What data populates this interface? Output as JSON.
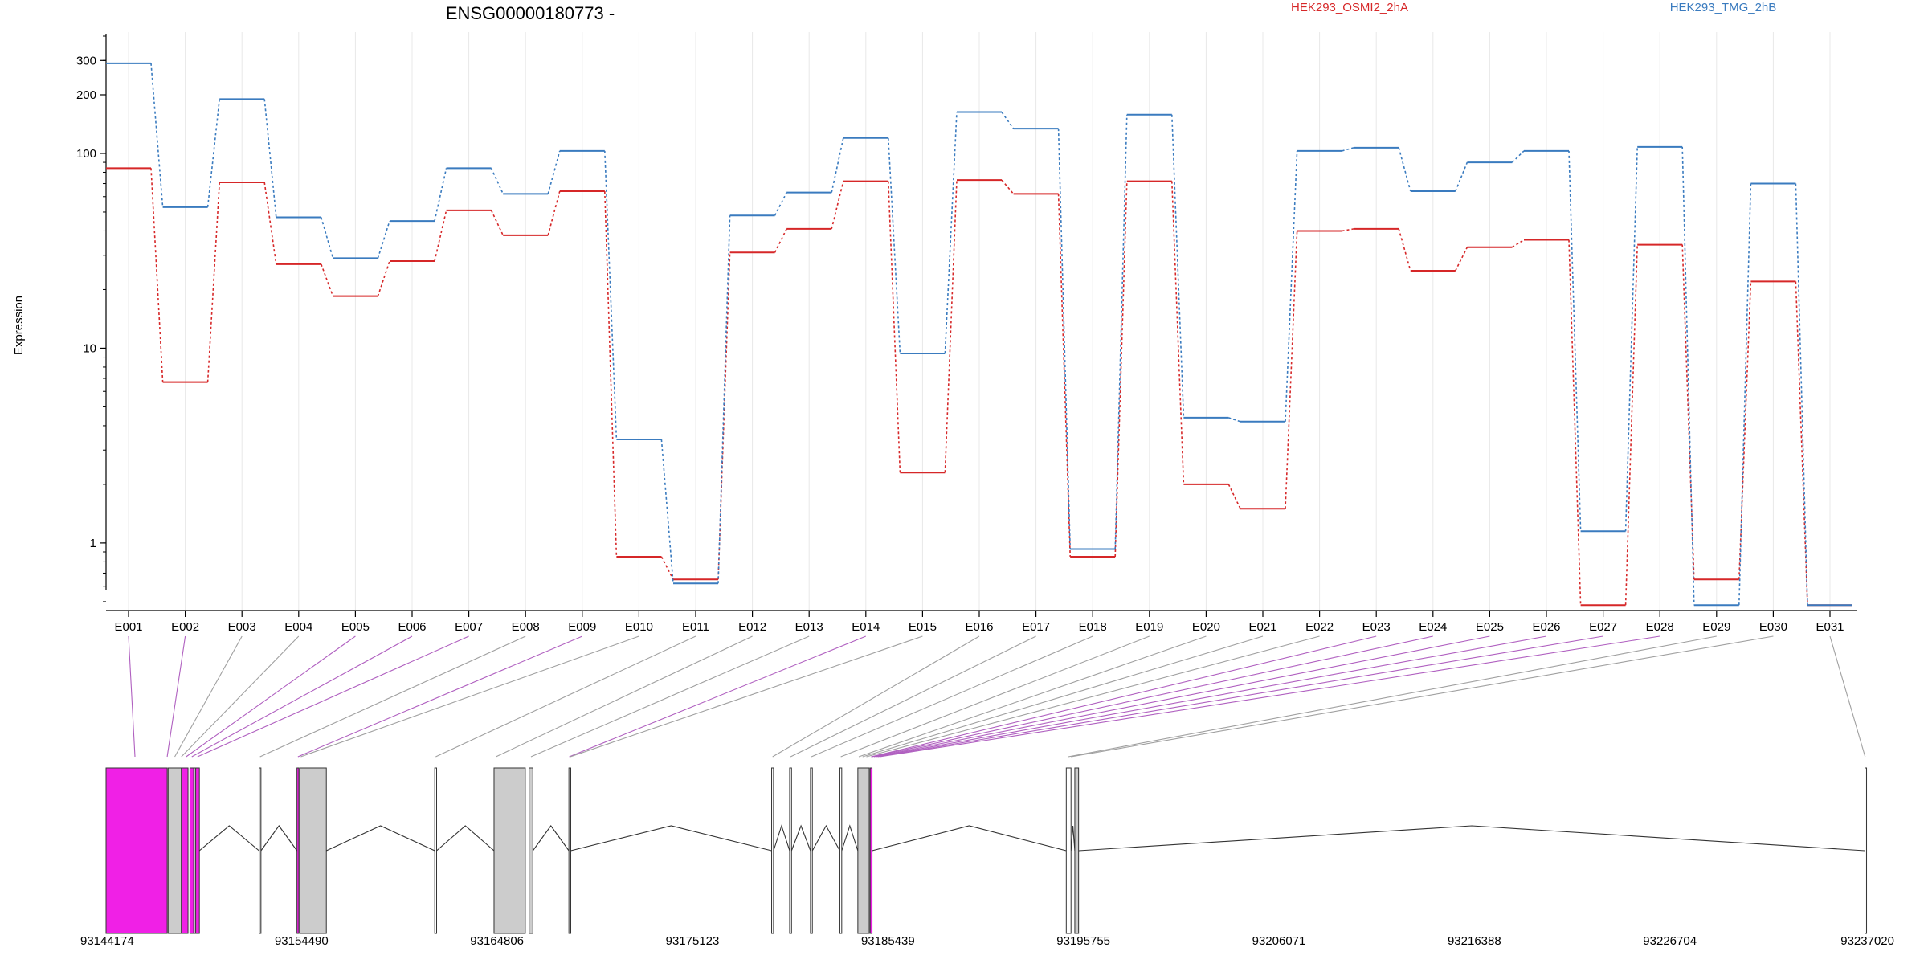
{
  "chart_data": {
    "type": "line",
    "title": "ENSG00000180773 -",
    "ylabel": "Expression",
    "xlabel": "",
    "yscale": "log",
    "ylim": [
      0.45,
      400
    ],
    "yticks": [
      1,
      10,
      100,
      200,
      300
    ],
    "grid": "vertical",
    "legend_position": "top-right",
    "categories": [
      "E001",
      "E002",
      "E003",
      "E004",
      "E005",
      "E006",
      "E007",
      "E008",
      "E009",
      "E010",
      "E011",
      "E012",
      "E013",
      "E014",
      "E015",
      "E016",
      "E017",
      "E018",
      "E019",
      "E020",
      "E021",
      "E022",
      "E023",
      "E024",
      "E025",
      "E026",
      "E027",
      "E028",
      "E029",
      "E030",
      "E031"
    ],
    "series": [
      {
        "name": "HEK293_OSMI2_2hA",
        "color": "#d62728",
        "values": [
          84,
          6.7,
          71,
          27,
          18.5,
          28,
          51,
          38,
          64,
          0.85,
          0.65,
          31,
          41,
          72,
          2.3,
          73,
          62,
          0.85,
          72,
          2.0,
          1.5,
          40,
          41,
          25,
          33,
          36,
          0.48,
          34,
          0.65,
          22,
          0.48
        ]
      },
      {
        "name": "HEK293_TMG_2hB",
        "color": "#3a7bbf",
        "values": [
          290,
          53,
          190,
          47,
          29,
          45,
          84,
          62,
          103,
          3.4,
          0.62,
          48,
          63,
          120,
          9.4,
          163,
          134,
          0.93,
          158,
          4.4,
          4.2,
          103,
          107,
          64,
          90,
          103,
          1.15,
          108,
          0.48,
          70,
          0.48
        ]
      }
    ]
  },
  "gene_model": {
    "coordinates": [
      "93144174",
      "93154490",
      "93164806",
      "93175123",
      "93185439",
      "93195755",
      "93206071",
      "93216388",
      "93226704",
      "93237020"
    ],
    "coord_range": [
      93144174,
      93237020
    ],
    "highlight_color": "#f020e6",
    "exon_color": "#cccccc",
    "exons": [
      {
        "s": 93144174,
        "e": 93147400,
        "fill": "highlight"
      },
      {
        "s": 93147450,
        "e": 93148150,
        "fill": "normal"
      },
      {
        "s": 93148150,
        "e": 93148500,
        "fill": "highlight"
      },
      {
        "s": 93148600,
        "e": 93148800,
        "fill": "highlight"
      },
      {
        "s": 93148900,
        "e": 93149100,
        "fill": "highlight"
      },
      {
        "s": 93148820,
        "e": 93148880,
        "fill": "normal"
      },
      {
        "s": 93152250,
        "e": 93152350,
        "fill": "normal"
      },
      {
        "s": 93154250,
        "e": 93154350,
        "fill": "highlight"
      },
      {
        "s": 93154400,
        "e": 93155800,
        "fill": "normal"
      },
      {
        "s": 93161520,
        "e": 93161620,
        "fill": "white"
      },
      {
        "s": 93164650,
        "e": 93166300,
        "fill": "normal"
      },
      {
        "s": 93166500,
        "e": 93166700,
        "fill": "normal"
      },
      {
        "s": 93168600,
        "e": 93168700,
        "fill": "white"
      },
      {
        "s": 93179300,
        "e": 93179400,
        "fill": "white"
      },
      {
        "s": 93180250,
        "e": 93180350,
        "fill": "white"
      },
      {
        "s": 93181350,
        "e": 93181450,
        "fill": "white"
      },
      {
        "s": 93182900,
        "e": 93183000,
        "fill": "white"
      },
      {
        "s": 93183850,
        "e": 93184450,
        "fill": "normal"
      },
      {
        "s": 93184500,
        "e": 93184600,
        "fill": "highlight"
      },
      {
        "s": 93194850,
        "e": 93195100,
        "fill": "white"
      },
      {
        "s": 93195300,
        "e": 93195500,
        "fill": "normal"
      },
      {
        "s": 93237000,
        "e": 93237020,
        "fill": "white"
      }
    ],
    "introns": [
      [
        93149100,
        93152250
      ],
      [
        93152350,
        93154250
      ],
      [
        93155800,
        93161520
      ],
      [
        93161620,
        93164650
      ],
      [
        93166700,
        93168600
      ],
      [
        93168700,
        93179300
      ],
      [
        93179400,
        93180250
      ],
      [
        93180350,
        93181350
      ],
      [
        93181450,
        93182900
      ],
      [
        93183000,
        93183850
      ],
      [
        93184600,
        93194850
      ],
      [
        93195100,
        93195300
      ],
      [
        93195500,
        93237000
      ]
    ],
    "connectors": [
      {
        "bin": "E001",
        "target": 93145700,
        "fill": "highlight"
      },
      {
        "bin": "E002",
        "target": 93147400,
        "fill": "highlight"
      },
      {
        "bin": "E003",
        "target": 93147800,
        "fill": "normal"
      },
      {
        "bin": "E004",
        "target": 93148150,
        "fill": "normal"
      },
      {
        "bin": "E005",
        "target": 93148400,
        "fill": "highlight"
      },
      {
        "bin": "E006",
        "target": 93148700,
        "fill": "highlight"
      },
      {
        "bin": "E007",
        "target": 93149000,
        "fill": "highlight"
      },
      {
        "bin": "E008",
        "target": 93152300,
        "fill": "normal"
      },
      {
        "bin": "E009",
        "target": 93154300,
        "fill": "highlight"
      },
      {
        "bin": "E010",
        "target": 93154450,
        "fill": "normal"
      },
      {
        "bin": "E011",
        "target": 93161570,
        "fill": "normal"
      },
      {
        "bin": "E012",
        "target": 93164750,
        "fill": "normal"
      },
      {
        "bin": "E013",
        "target": 93166600,
        "fill": "normal"
      },
      {
        "bin": "E014",
        "target": 93168620,
        "fill": "highlight"
      },
      {
        "bin": "E015",
        "target": 93168680,
        "fill": "normal"
      },
      {
        "bin": "E016",
        "target": 93179350,
        "fill": "normal"
      },
      {
        "bin": "E017",
        "target": 93180300,
        "fill": "normal"
      },
      {
        "bin": "E018",
        "target": 93181400,
        "fill": "normal"
      },
      {
        "bin": "E019",
        "target": 93182950,
        "fill": "normal"
      },
      {
        "bin": "E020",
        "target": 93183900,
        "fill": "normal"
      },
      {
        "bin": "E021",
        "target": 93184100,
        "fill": "normal"
      },
      {
        "bin": "E022",
        "target": 93184300,
        "fill": "normal"
      },
      {
        "bin": "E023",
        "target": 93184550,
        "fill": "highlight"
      },
      {
        "bin": "E024",
        "target": 93184600,
        "fill": "highlight"
      },
      {
        "bin": "E025",
        "target": 93184700,
        "fill": "highlight"
      },
      {
        "bin": "E026",
        "target": 93184800,
        "fill": "highlight"
      },
      {
        "bin": "E027",
        "target": 93184900,
        "fill": "highlight"
      },
      {
        "bin": "E028",
        "target": 93185000,
        "fill": "highlight"
      },
      {
        "bin": "E029",
        "target": 93194950,
        "fill": "normal"
      },
      {
        "bin": "E030",
        "target": 93195100,
        "fill": "normal"
      },
      {
        "bin": "E031",
        "target": 93237010,
        "fill": "normal"
      }
    ]
  }
}
